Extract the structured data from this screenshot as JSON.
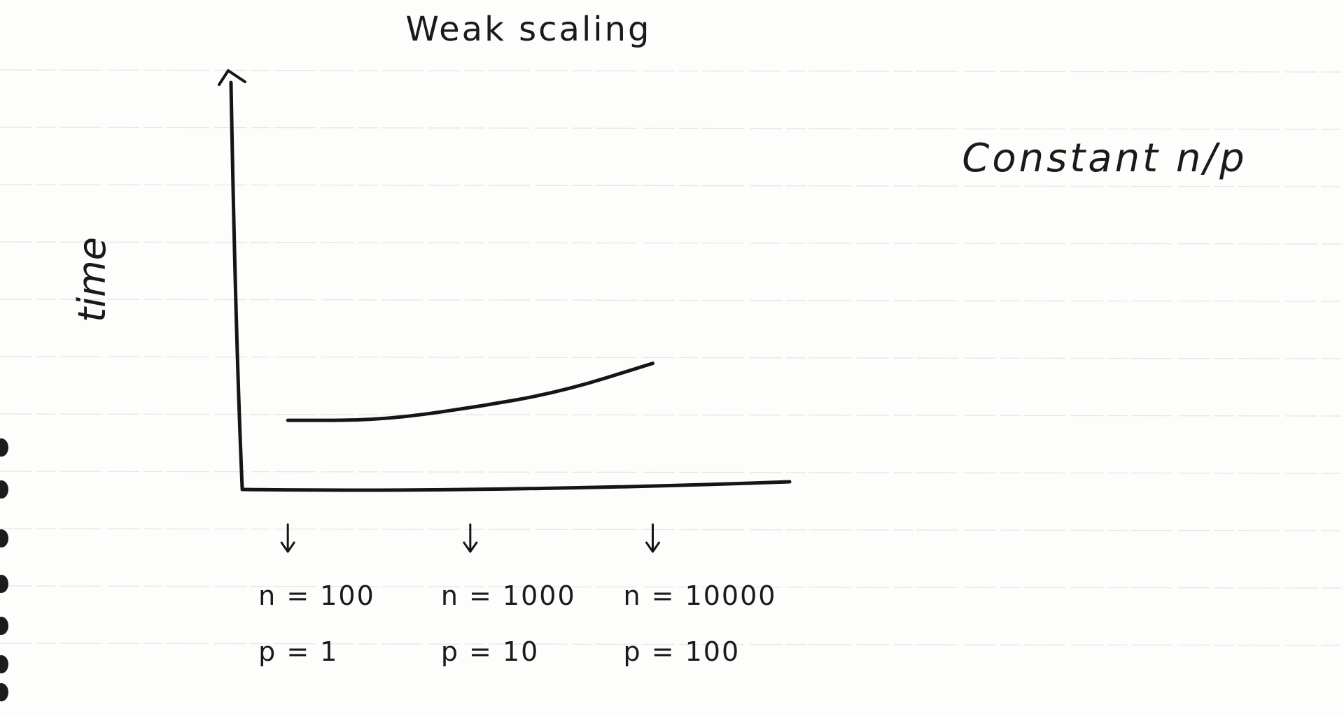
{
  "chart_data": {
    "type": "line",
    "title": "Weak scaling",
    "ylabel": "time",
    "xlabel": "",
    "annotation": "Constant n/p",
    "categories": [
      {
        "n_label": "n = 100",
        "p_label": "p = 1"
      },
      {
        "n_label": "n = 1000",
        "p_label": "p = 10"
      },
      {
        "n_label": "n = 10000",
        "p_label": "p = 100"
      }
    ],
    "series": [
      {
        "x": [
          0,
          0.5,
          1,
          1.5,
          2
        ],
        "values": [
          0.17,
          0.17,
          0.2,
          0.24,
          0.31
        ]
      }
    ],
    "ylim": [
      0,
      1
    ],
    "xlim": [
      -0.25,
      2.75
    ],
    "grid": false,
    "legend": "none"
  },
  "colors": {
    "ink": "#151515",
    "paper": "#fdfdfc",
    "ruling": "#e6e6e6"
  }
}
